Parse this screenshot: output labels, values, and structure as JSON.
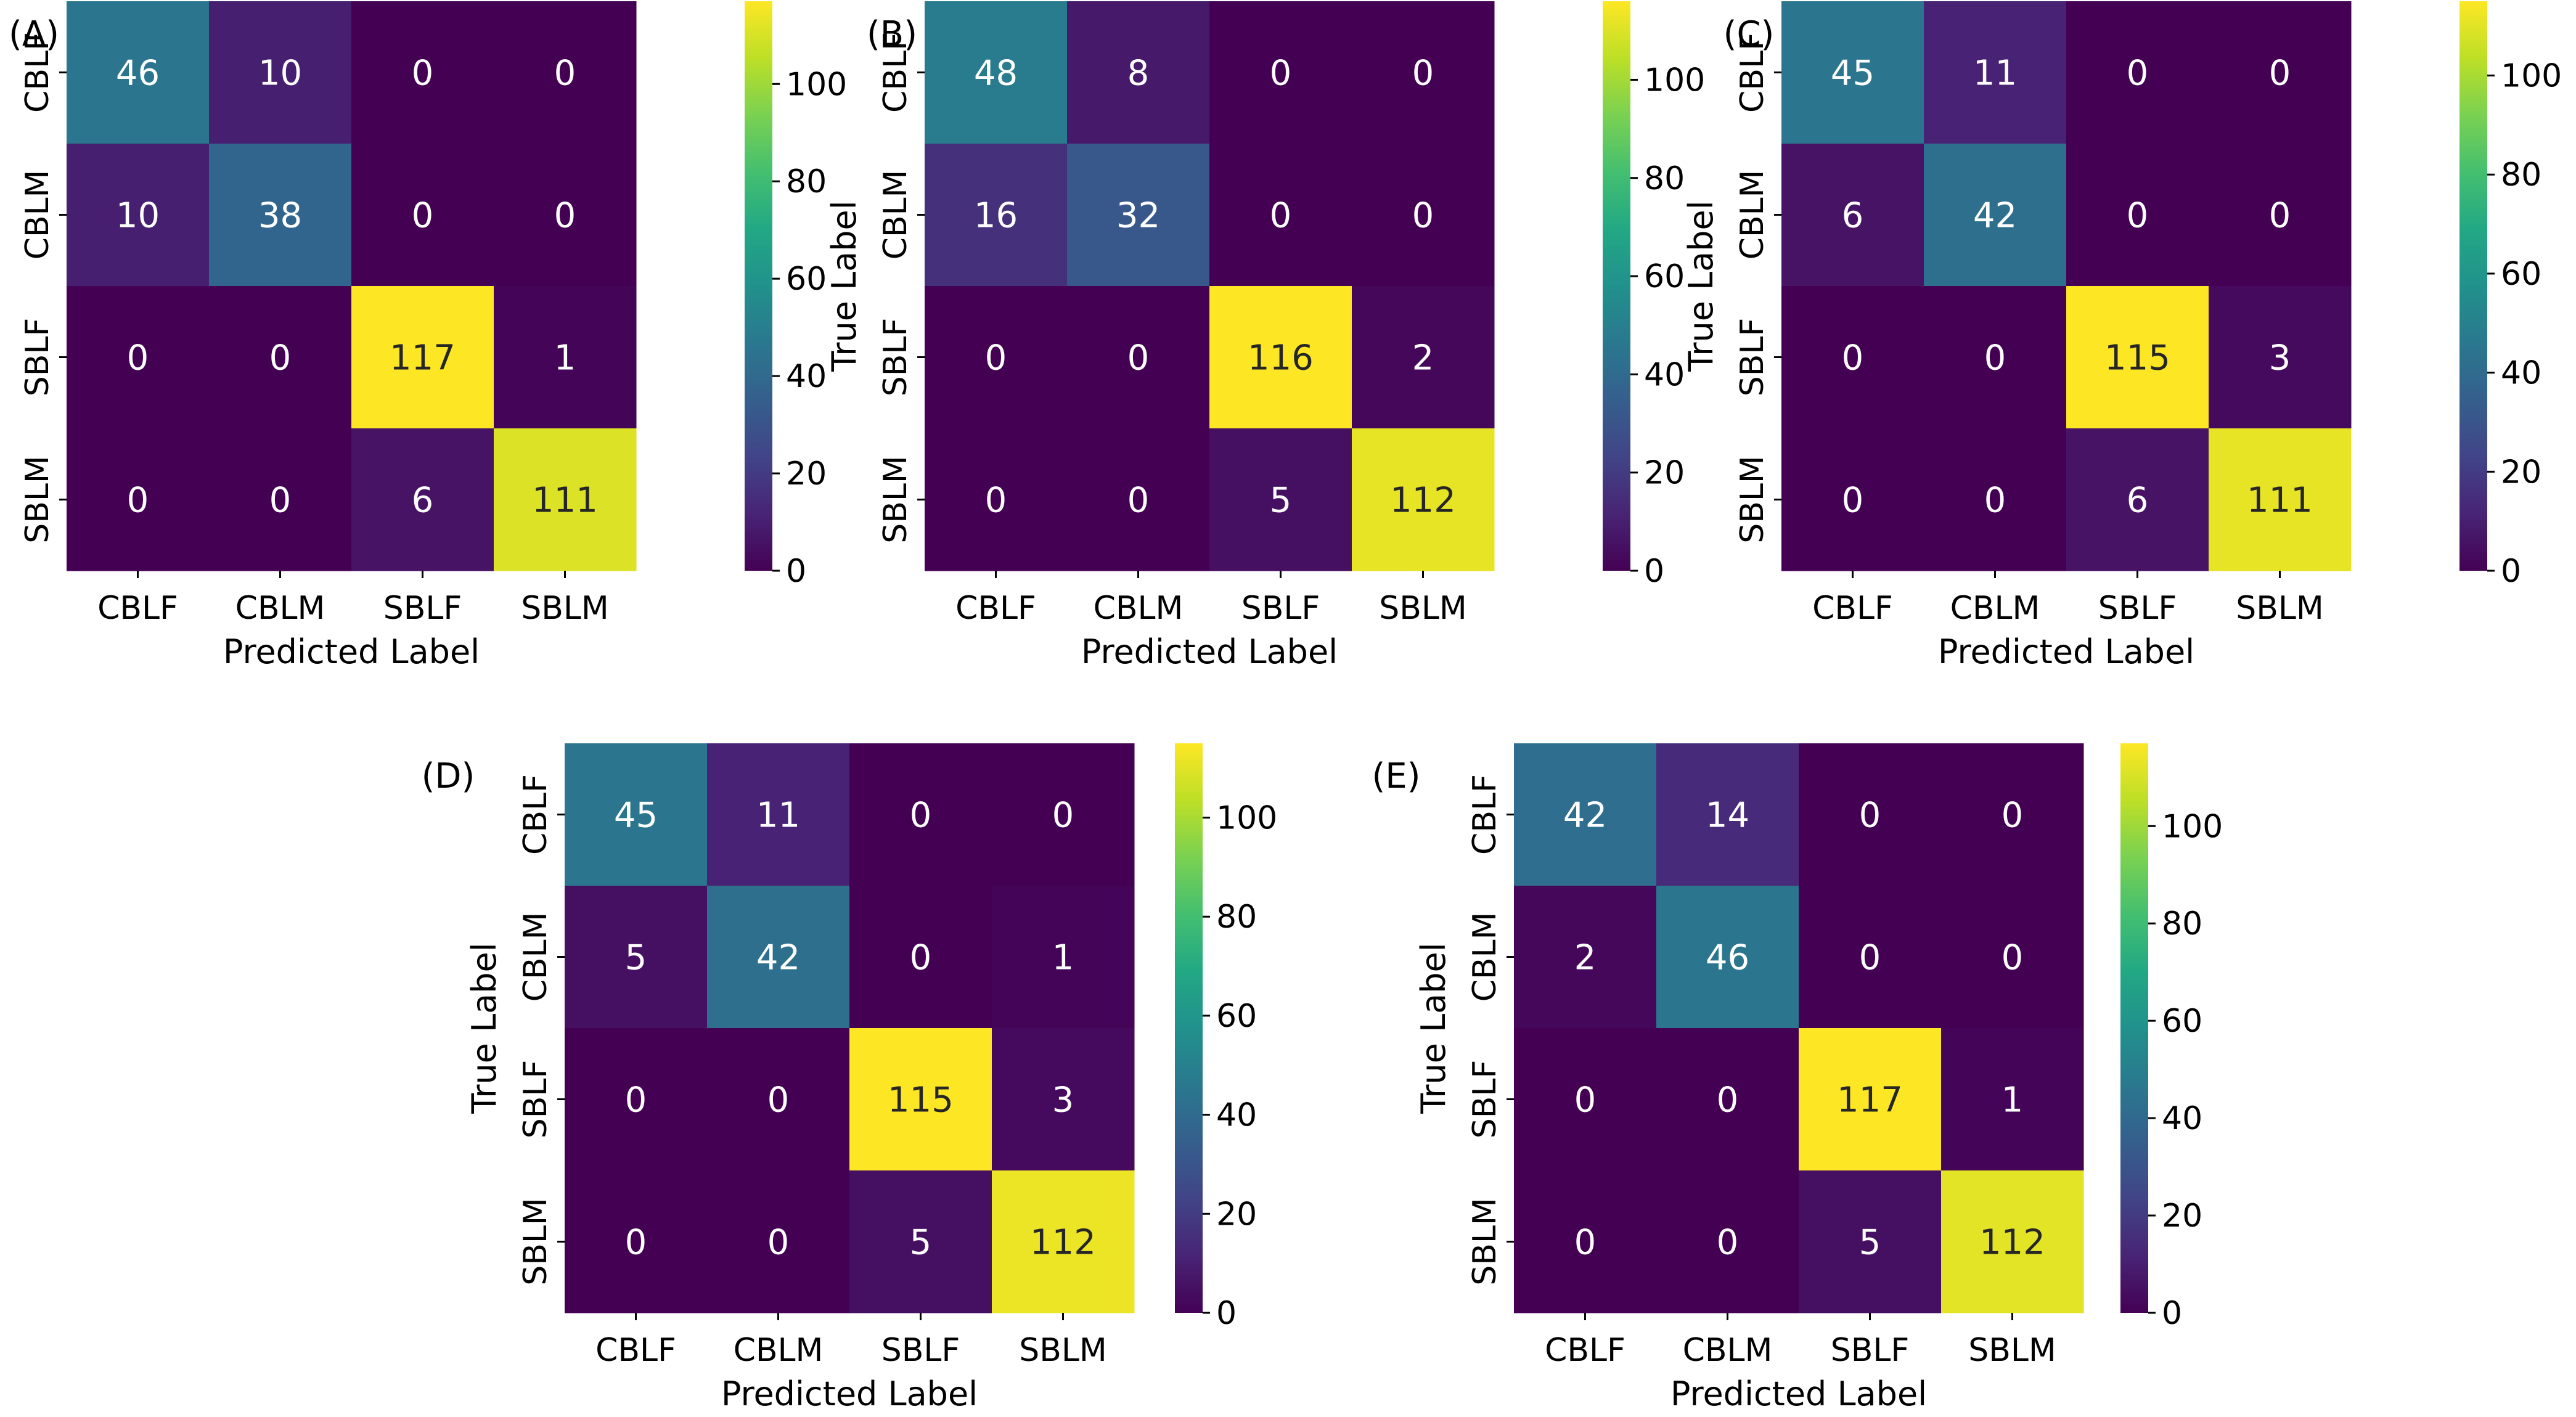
{
  "chart_data": [
    {
      "type": "heatmap",
      "panel_label": "(A)",
      "rows": [
        "CBLF",
        "CBLM",
        "SBLF",
        "SBLM"
      ],
      "columns": [
        "CBLF",
        "CBLM",
        "SBLF",
        "SBLM"
      ],
      "values": [
        [
          46,
          10,
          0,
          0
        ],
        [
          10,
          38,
          0,
          0
        ],
        [
          0,
          0,
          117,
          1
        ],
        [
          0,
          0,
          6,
          111
        ]
      ],
      "xlabel": "Predicted Label",
      "ylabel": "True Label",
      "colorbar": {
        "range": [
          0,
          117
        ],
        "ticks": [
          0,
          20,
          40,
          60,
          80,
          100
        ]
      }
    },
    {
      "type": "heatmap",
      "panel_label": "(B)",
      "rows": [
        "CBLF",
        "CBLM",
        "SBLF",
        "SBLM"
      ],
      "columns": [
        "CBLF",
        "CBLM",
        "SBLF",
        "SBLM"
      ],
      "values": [
        [
          48,
          8,
          0,
          0
        ],
        [
          16,
          32,
          0,
          0
        ],
        [
          0,
          0,
          116,
          2
        ],
        [
          0,
          0,
          5,
          112
        ]
      ],
      "xlabel": "Predicted Label",
      "ylabel": "True Label",
      "colorbar": {
        "range": [
          0,
          116
        ],
        "ticks": [
          0,
          20,
          40,
          60,
          80,
          100
        ]
      }
    },
    {
      "type": "heatmap",
      "panel_label": "(C)",
      "rows": [
        "CBLF",
        "CBLM",
        "SBLF",
        "SBLM"
      ],
      "columns": [
        "CBLF",
        "CBLM",
        "SBLF",
        "SBLM"
      ],
      "values": [
        [
          45,
          11,
          0,
          0
        ],
        [
          6,
          42,
          0,
          0
        ],
        [
          0,
          0,
          115,
          3
        ],
        [
          0,
          0,
          6,
          111
        ]
      ],
      "xlabel": "Predicted Label",
      "ylabel": "True Label",
      "colorbar": {
        "range": [
          0,
          115
        ],
        "ticks": [
          0,
          20,
          40,
          60,
          80,
          100
        ]
      }
    },
    {
      "type": "heatmap",
      "panel_label": "(D)",
      "rows": [
        "CBLF",
        "CBLM",
        "SBLF",
        "SBLM"
      ],
      "columns": [
        "CBLF",
        "CBLM",
        "SBLF",
        "SBLM"
      ],
      "values": [
        [
          45,
          11,
          0,
          0
        ],
        [
          5,
          42,
          0,
          1
        ],
        [
          0,
          0,
          115,
          3
        ],
        [
          0,
          0,
          5,
          112
        ]
      ],
      "xlabel": "Predicted Label",
      "ylabel": "True Label",
      "colorbar": {
        "range": [
          0,
          115
        ],
        "ticks": [
          0,
          20,
          40,
          60,
          80,
          100
        ]
      }
    },
    {
      "type": "heatmap",
      "panel_label": "(E)",
      "rows": [
        "CBLF",
        "CBLM",
        "SBLF",
        "SBLM"
      ],
      "columns": [
        "CBLF",
        "CBLM",
        "SBLF",
        "SBLM"
      ],
      "values": [
        [
          42,
          14,
          0,
          0
        ],
        [
          2,
          46,
          0,
          0
        ],
        [
          0,
          0,
          117,
          1
        ],
        [
          0,
          0,
          5,
          112
        ]
      ],
      "xlabel": "Predicted Label",
      "ylabel": "True Label",
      "colorbar": {
        "range": [
          0,
          117
        ],
        "ticks": [
          0,
          20,
          40,
          60,
          80,
          100
        ]
      }
    }
  ]
}
